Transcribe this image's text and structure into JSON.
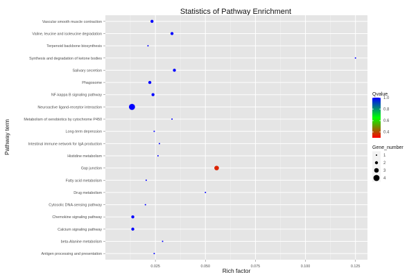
{
  "chart_data": {
    "type": "scatter",
    "title": "Statistics of Pathway Enrichment",
    "xlabel": "Rich factor",
    "ylabel": "Pathway term",
    "xlim": [
      0.0,
      0.131
    ],
    "x_ticks": [
      0.025,
      0.05,
      0.075,
      0.1,
      0.125
    ],
    "x_tick_labels": [
      "0.025",
      "0.050",
      "0.075",
      "0.100",
      "0.125"
    ],
    "grid": true,
    "legend_position": "right",
    "categories": [
      "Vascular smooth muscle contraction",
      "Valine, leucine and isoleucine degradation",
      "Terpenoid backbone biosynthesis",
      "Synthesis and degradation of ketone bodies",
      "Salivary secretion",
      "Phagosome",
      "NF-kappa B signaling pathway",
      "Neuroactive ligand-receptor interaction",
      "Metabolism of xenobiotics by cytochrome P450",
      "Long-term depression",
      "Intestinal immune network for IgA production",
      "Histidine metabolism",
      "Gap junction",
      "Fatty acid metabolism",
      "Drug metabolism",
      "Cytosolic DNA-sensing pathway",
      "Chemokine signaling pathway",
      "Calcium signaling pathway",
      "beta-Alanine metabolism",
      "Antigen processing and presentation"
    ],
    "points": [
      {
        "term": "Vascular smooth muscle contraction",
        "rich_factor": 0.0233,
        "gene_number": 2,
        "qvalue": 1.0
      },
      {
        "term": "Valine, leucine and isoleucine degradation",
        "rich_factor": 0.0333,
        "gene_number": 2,
        "qvalue": 1.0
      },
      {
        "term": "Terpenoid backbone biosynthesis",
        "rich_factor": 0.0213,
        "gene_number": 1,
        "qvalue": 1.0
      },
      {
        "term": "Synthesis and degradation of ketone bodies",
        "rich_factor": 0.125,
        "gene_number": 1,
        "qvalue": 1.0
      },
      {
        "term": "Salivary secretion",
        "rich_factor": 0.0345,
        "gene_number": 2,
        "qvalue": 1.0
      },
      {
        "term": "Phagosome",
        "rich_factor": 0.0222,
        "gene_number": 2,
        "qvalue": 1.0
      },
      {
        "term": "NF-kappa B signaling pathway",
        "rich_factor": 0.0238,
        "gene_number": 2,
        "qvalue": 1.0
      },
      {
        "term": "Neuroactive ligand-receptor interaction",
        "rich_factor": 0.0133,
        "gene_number": 4,
        "qvalue": 1.0
      },
      {
        "term": "Metabolism of xenobiotics by cytochrome P450",
        "rich_factor": 0.0333,
        "gene_number": 1,
        "qvalue": 1.0
      },
      {
        "term": "Long-term depression",
        "rich_factor": 0.0244,
        "gene_number": 1,
        "qvalue": 1.0
      },
      {
        "term": "Intestinal immune network for IgA production",
        "rich_factor": 0.027,
        "gene_number": 1,
        "qvalue": 1.0
      },
      {
        "term": "Histidine metabolism",
        "rich_factor": 0.0263,
        "gene_number": 1,
        "qvalue": 1.0
      },
      {
        "term": "Gap junction",
        "rich_factor": 0.0556,
        "gene_number": 3,
        "qvalue": 0.35
      },
      {
        "term": "Fatty acid metabolism",
        "rich_factor": 0.0204,
        "gene_number": 1,
        "qvalue": 1.0
      },
      {
        "term": "Drug metabolism",
        "rich_factor": 0.05,
        "gene_number": 1,
        "qvalue": 1.0
      },
      {
        "term": "Cytosolic DNA-sensing pathway",
        "rich_factor": 0.02,
        "gene_number": 1,
        "qvalue": 1.0
      },
      {
        "term": "Chemokine signaling pathway",
        "rich_factor": 0.0137,
        "gene_number": 2,
        "qvalue": 1.0
      },
      {
        "term": "Calcium signaling pathway",
        "rich_factor": 0.0137,
        "gene_number": 2,
        "qvalue": 1.0
      },
      {
        "term": "beta-Alanine metabolism",
        "rich_factor": 0.0286,
        "gene_number": 1,
        "qvalue": 1.0
      },
      {
        "term": "Antigen processing and presentation",
        "rich_factor": 0.0244,
        "gene_number": 1,
        "qvalue": 1.0
      }
    ],
    "color_legend": {
      "title": "Qvalue",
      "range": [
        0.3,
        1.0
      ],
      "ticks": [
        0.4,
        0.6,
        0.8,
        1.0
      ],
      "tick_labels": [
        "0.4",
        "0.6",
        "0.8",
        "1.0"
      ],
      "gradient": [
        "#ff0000",
        "#00ff00",
        "#0000ff"
      ]
    },
    "size_legend": {
      "title": "Gene_number",
      "values": [
        1,
        2,
        3,
        4
      ],
      "labels": [
        "1",
        "2",
        "3",
        "4"
      ]
    },
    "colors": {
      "panel_background": "#e5e5e5",
      "grid_major": "#ffffff",
      "grid_minor": "#f2f2f2"
    }
  }
}
